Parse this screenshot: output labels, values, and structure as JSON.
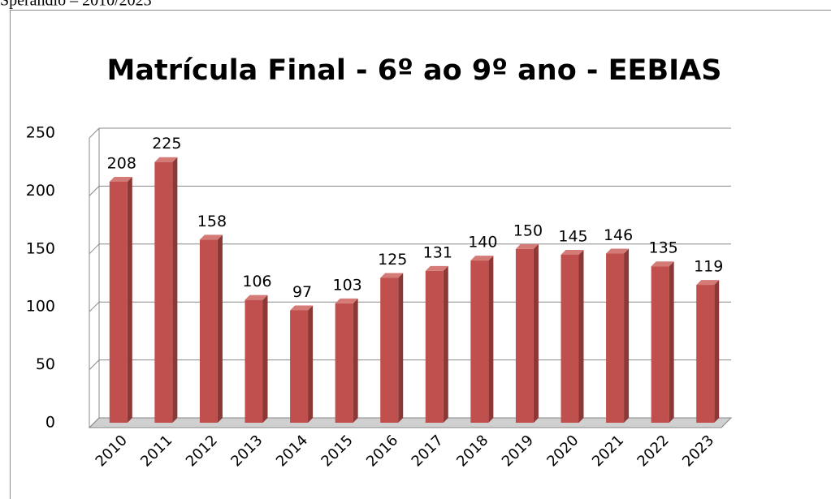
{
  "header_text": "Sperandio – 2010/2023",
  "chart_data": {
    "type": "bar",
    "title": "Matrícula Final - 6º ao 9º ano - EEBIAS",
    "categories": [
      "2010",
      "2011",
      "2012",
      "2013",
      "2014",
      "2015",
      "2016",
      "2017",
      "2018",
      "2019",
      "2020",
      "2021",
      "2022",
      "2023"
    ],
    "values": [
      208,
      225,
      158,
      106,
      97,
      103,
      125,
      131,
      140,
      150,
      145,
      146,
      135,
      119
    ],
    "color": "#c0504d",
    "ylim": [
      0,
      250
    ],
    "yticks": [
      0,
      50,
      100,
      150,
      200,
      250
    ],
    "grid": true
  }
}
